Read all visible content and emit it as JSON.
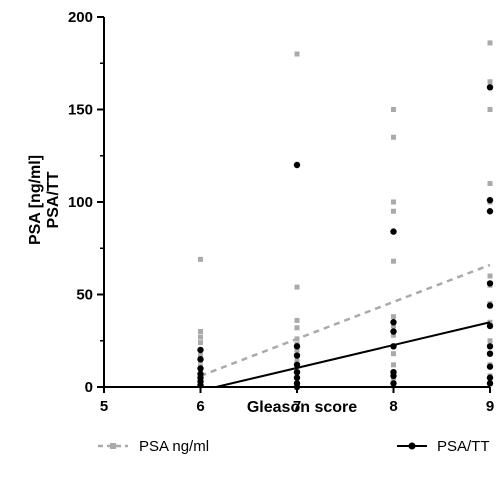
{
  "chart_data": {
    "type": "scatter",
    "xlabel": "Gleason score",
    "ylabel": [
      "PSA [ng/ml]",
      "PSA/TT"
    ],
    "xlim": [
      5,
      9
    ],
    "ylim": [
      0,
      200
    ],
    "x_ticks": [
      "5",
      "6",
      "7",
      "8",
      "9"
    ],
    "y_ticks": [
      "0",
      "50",
      "100",
      "150",
      "200"
    ],
    "legend_position": "bottom",
    "series": [
      {
        "name": "PSA ng/ml",
        "color": "#aaaaaa",
        "marker": "square",
        "trend_style": "dashed",
        "points": [
          [
            6,
            69
          ],
          [
            6,
            30
          ],
          [
            6,
            27
          ],
          [
            6,
            24
          ],
          [
            6,
            20
          ],
          [
            6,
            17
          ],
          [
            6,
            14
          ],
          [
            6,
            11
          ],
          [
            6,
            8
          ],
          [
            6,
            5
          ],
          [
            6,
            3
          ],
          [
            6,
            1
          ],
          [
            7,
            180
          ],
          [
            7,
            54
          ],
          [
            7,
            36
          ],
          [
            7,
            32
          ],
          [
            7,
            26
          ],
          [
            7,
            23
          ],
          [
            7,
            20
          ],
          [
            7,
            17
          ],
          [
            7,
            14
          ],
          [
            7,
            11
          ],
          [
            7,
            8
          ],
          [
            7,
            5
          ],
          [
            8,
            150
          ],
          [
            8,
            135
          ],
          [
            8,
            100
          ],
          [
            8,
            95
          ],
          [
            8,
            68
          ],
          [
            8,
            38
          ],
          [
            8,
            33
          ],
          [
            8,
            28
          ],
          [
            8,
            22
          ],
          [
            8,
            18
          ],
          [
            8,
            12
          ],
          [
            8,
            8
          ],
          [
            8,
            5
          ],
          [
            8,
            2
          ],
          [
            9,
            186
          ],
          [
            9,
            165
          ],
          [
            9,
            150
          ],
          [
            9,
            110
          ],
          [
            9,
            100
          ],
          [
            9,
            60
          ],
          [
            9,
            55
          ],
          [
            9,
            45
          ],
          [
            9,
            35
          ],
          [
            9,
            25
          ],
          [
            9,
            18
          ],
          [
            9,
            12
          ],
          [
            9,
            6
          ],
          [
            9,
            2
          ]
        ],
        "trend": [
          [
            6,
            6
          ],
          [
            9,
            66
          ]
        ]
      },
      {
        "name": "PSA/TT",
        "color": "#000000",
        "marker": "circle",
        "trend_style": "solid",
        "points": [
          [
            6,
            20
          ],
          [
            6,
            15
          ],
          [
            6,
            10
          ],
          [
            6,
            7
          ],
          [
            6,
            5
          ],
          [
            6,
            3
          ],
          [
            6,
            1
          ],
          [
            7,
            120
          ],
          [
            7,
            22
          ],
          [
            7,
            17
          ],
          [
            7,
            12
          ],
          [
            7,
            8
          ],
          [
            7,
            5
          ],
          [
            7,
            2
          ],
          [
            7,
            0
          ],
          [
            8,
            84
          ],
          [
            8,
            35
          ],
          [
            8,
            30
          ],
          [
            8,
            22
          ],
          [
            8,
            8
          ],
          [
            8,
            6
          ],
          [
            8,
            2
          ],
          [
            9,
            162
          ],
          [
            9,
            101
          ],
          [
            9,
            95
          ],
          [
            9,
            56
          ],
          [
            9,
            44
          ],
          [
            9,
            33
          ],
          [
            9,
            22
          ],
          [
            9,
            18
          ],
          [
            9,
            11
          ],
          [
            9,
            5
          ],
          [
            9,
            2
          ]
        ],
        "trend": [
          [
            6,
            -2
          ],
          [
            9,
            35
          ]
        ]
      }
    ]
  }
}
